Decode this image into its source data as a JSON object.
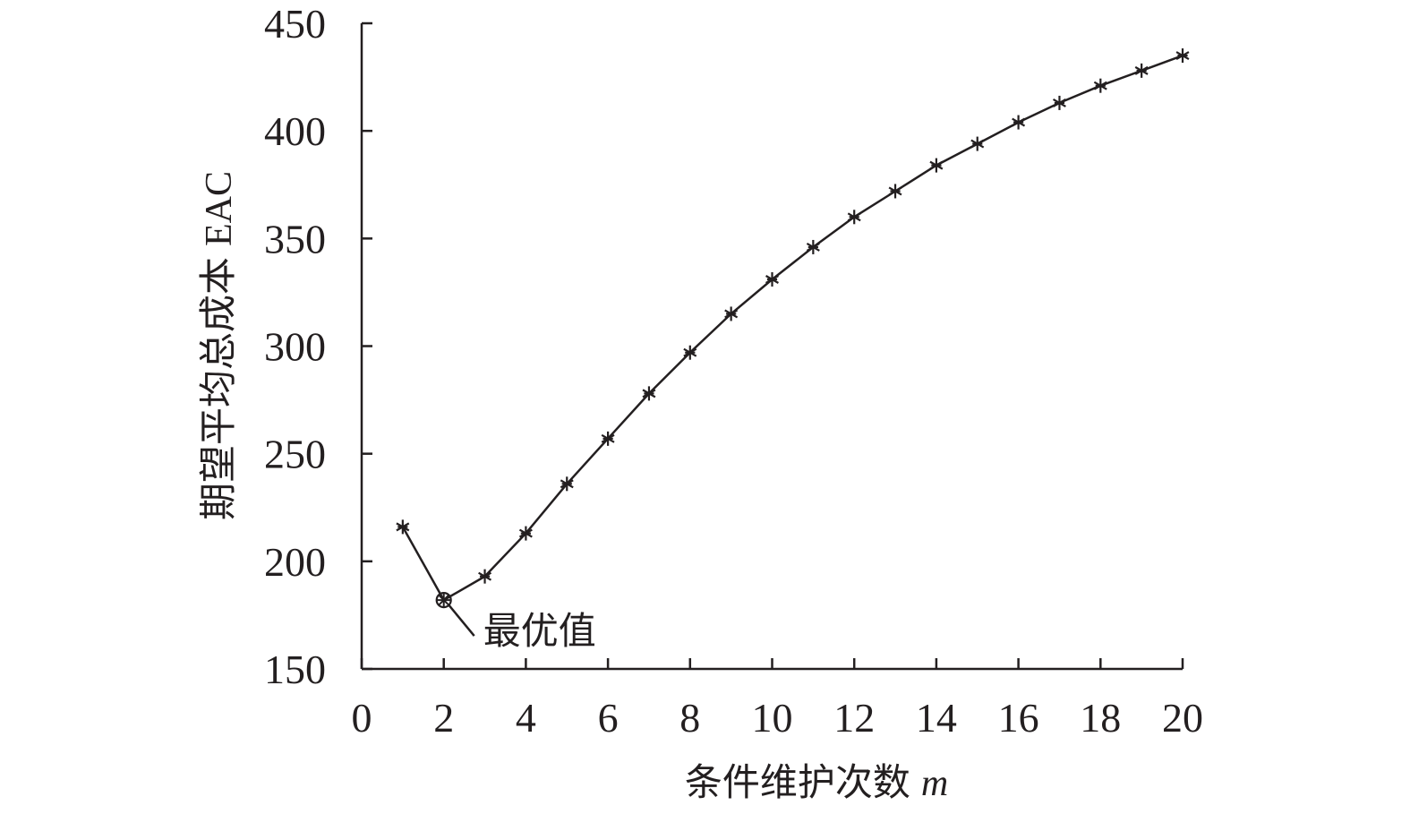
{
  "chart_data": {
    "type": "line",
    "title": "",
    "xlabel": "条件维护次数",
    "xlabel_var": "m",
    "ylabel": "期望平均总成本",
    "ylabel_suffix": "EAC",
    "xlim": [
      0,
      20
    ],
    "ylim": [
      150,
      450
    ],
    "xticks": [
      0,
      2,
      4,
      6,
      8,
      10,
      12,
      14,
      16,
      18,
      20
    ],
    "yticks": [
      150,
      200,
      250,
      300,
      350,
      400,
      450
    ],
    "grid": false,
    "legend": "none",
    "x": [
      1,
      2,
      3,
      4,
      5,
      6,
      7,
      8,
      9,
      10,
      11,
      12,
      13,
      14,
      15,
      16,
      17,
      18,
      19,
      20
    ],
    "series": [
      {
        "values": [
          216,
          182,
          193,
          213,
          236,
          257,
          278,
          297,
          315,
          331,
          346,
          360,
          372,
          384,
          394,
          404,
          413,
          421,
          428,
          435
        ],
        "marker": "asterisk",
        "color": "#231f20"
      }
    ],
    "annotations": [
      {
        "text": "最优值",
        "x": 2,
        "y": 182,
        "marker": "circled-cross"
      }
    ]
  }
}
